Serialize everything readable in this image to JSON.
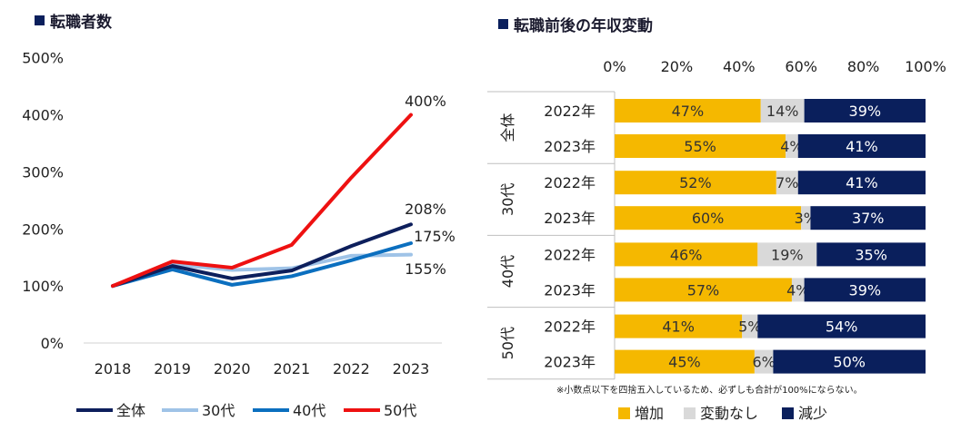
{
  "chart_data": [
    {
      "type": "line",
      "title": "転職者数",
      "title_marker": "■",
      "x": [
        "2018",
        "2019",
        "2020",
        "2021",
        "2022",
        "2023"
      ],
      "ylim": [
        0,
        500
      ],
      "yticks": [
        0,
        100,
        200,
        300,
        400,
        500
      ],
      "ytick_labels": [
        "0%",
        "100%",
        "200%",
        "300%",
        "400%",
        "500%"
      ],
      "series": [
        {
          "name": "全体",
          "color": "#0d1f5c",
          "values": [
            100,
            135,
            113,
            127,
            170,
            208
          ],
          "end_label": "208%"
        },
        {
          "name": "30代",
          "color": "#9fc3e7",
          "values": [
            100,
            138,
            128,
            131,
            153,
            155
          ],
          "end_label": "155%"
        },
        {
          "name": "40代",
          "color": "#0b6fbf",
          "values": [
            100,
            129,
            102,
            117,
            145,
            175
          ],
          "end_label": "175%"
        },
        {
          "name": "50代",
          "color": "#ee1111",
          "values": [
            100,
            143,
            132,
            172,
            290,
            400
          ],
          "end_label": "400%"
        }
      ],
      "legend_position": "bottom"
    },
    {
      "type": "bar",
      "orientation": "horizontal-stacked",
      "title": "転職前後の年収変動",
      "title_marker": "■",
      "xlim": [
        0,
        100
      ],
      "xticks": [
        "0%",
        "20%",
        "40%",
        "60%",
        "80%",
        "100%"
      ],
      "groups": [
        {
          "label": "全体",
          "rows": [
            {
              "year": "2022年",
              "values": [
                47,
                14,
                39
              ]
            },
            {
              "year": "2023年",
              "values": [
                55,
                4,
                41
              ]
            }
          ]
        },
        {
          "label": "30代",
          "rows": [
            {
              "year": "2022年",
              "values": [
                52,
                7,
                41
              ]
            },
            {
              "year": "2023年",
              "values": [
                60,
                3,
                37
              ]
            }
          ]
        },
        {
          "label": "40代",
          "rows": [
            {
              "year": "2022年",
              "values": [
                46,
                19,
                35
              ]
            },
            {
              "year": "2023年",
              "values": [
                57,
                4,
                39
              ]
            }
          ]
        },
        {
          "label": "50代",
          "rows": [
            {
              "year": "2022年",
              "values": [
                41,
                5,
                54
              ]
            },
            {
              "year": "2023年",
              "values": [
                45,
                6,
                50
              ]
            }
          ]
        }
      ],
      "series": [
        {
          "name": "増加",
          "color": "#f5b800",
          "text_color": "#333333"
        },
        {
          "name": "変動なし",
          "color": "#d9d9d9",
          "text_color": "#333333"
        },
        {
          "name": "減少",
          "color": "#0a1f5c",
          "text_color": "#ffffff"
        }
      ],
      "note": "※小数点以下を四捨五入しているため、必ずしも合計が100%にならない。",
      "legend_position": "bottom"
    }
  ]
}
